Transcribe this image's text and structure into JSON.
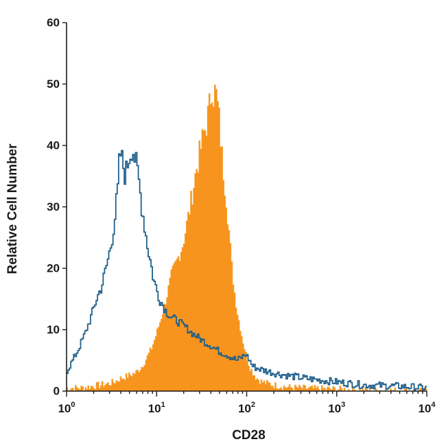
{
  "chart_data": {
    "type": "area",
    "title": "",
    "xlabel": "CD28",
    "ylabel": "Relative Cell Number",
    "xscale": "log",
    "xlim": [
      1,
      10000
    ],
    "ylim": [
      0,
      60
    ],
    "grid": false,
    "x_ticks": [
      {
        "base": "10",
        "exp": "0"
      },
      {
        "base": "10",
        "exp": "1"
      },
      {
        "base": "10",
        "exp": "2"
      },
      {
        "base": "10",
        "exp": "3"
      },
      {
        "base": "10",
        "exp": "4"
      }
    ],
    "y_ticks": [
      "0",
      "10",
      "20",
      "30",
      "40",
      "50",
      "60"
    ],
    "colors": {
      "filled": "#f7941d",
      "outline": "#1f5f8b"
    },
    "series": [
      {
        "style": "filled",
        "x": [
          1.0,
          1.5,
          2.0,
          2.5,
          3.0,
          3.5,
          4.0,
          5.0,
          6.0,
          7.0,
          8.0,
          9.0,
          10,
          11,
          12,
          13,
          14,
          15,
          16,
          18,
          20,
          22,
          24,
          26,
          28,
          30,
          32,
          34,
          36,
          38,
          40,
          42,
          44,
          46,
          48,
          50,
          53,
          56,
          60,
          65,
          70,
          75,
          80,
          90,
          100,
          110,
          120,
          130,
          150,
          200,
          300,
          500,
          1000,
          2000,
          10000
        ],
        "y": [
          0.5,
          0.5,
          0.8,
          1.0,
          1.2,
          1.5,
          2.0,
          2.5,
          3.0,
          4.0,
          5.5,
          7.0,
          9.0,
          11.0,
          13.0,
          15.0,
          17.0,
          19.0,
          20.0,
          22.0,
          24.0,
          27.0,
          30.0,
          33.0,
          36.0,
          38.0,
          40.0,
          42.0,
          43.0,
          45.0,
          47.0,
          50.0,
          48.0,
          49.0,
          47.0,
          45.0,
          40.0,
          36.0,
          32.0,
          26.0,
          20.0,
          16.0,
          13.0,
          9.0,
          6.0,
          4.0,
          3.0,
          2.2,
          1.5,
          1.0,
          0.6,
          0.4,
          0.3,
          0.2,
          0.0
        ]
      },
      {
        "style": "outline",
        "x": [
          1.0,
          1.2,
          1.4,
          1.6,
          1.8,
          2.0,
          2.2,
          2.5,
          2.8,
          3.0,
          3.2,
          3.5,
          3.8,
          4.0,
          4.3,
          4.6,
          5.0,
          5.5,
          6.0,
          6.5,
          7.0,
          7.5,
          8.0,
          8.5,
          9.0,
          9.5,
          10,
          11,
          12,
          13,
          14,
          15,
          17,
          19,
          21,
          23,
          25,
          28,
          31,
          35,
          40,
          45,
          50,
          60,
          70,
          80,
          90,
          100,
          110,
          120,
          150,
          200,
          300,
          500,
          1000,
          2000,
          5000,
          10000
        ],
        "y": [
          3.0,
          5.0,
          7.0,
          9.0,
          11.0,
          13.0,
          15.0,
          17.0,
          20.0,
          22.0,
          24.0,
          28.0,
          33.0,
          39.0,
          37.0,
          35.0,
          38.0,
          40.0,
          37.0,
          34.0,
          30.0,
          27.0,
          24.0,
          22.0,
          20.0,
          18.0,
          17.0,
          15.0,
          14.0,
          13.0,
          12.5,
          12.0,
          11.5,
          11.0,
          10.5,
          10.0,
          9.5,
          9.0,
          8.5,
          8.0,
          7.5,
          7.0,
          6.5,
          6.0,
          5.5,
          5.0,
          5.5,
          6.0,
          5.0,
          4.0,
          3.5,
          3.0,
          2.5,
          2.0,
          1.5,
          1.0,
          0.8,
          0.5
        ]
      }
    ]
  }
}
